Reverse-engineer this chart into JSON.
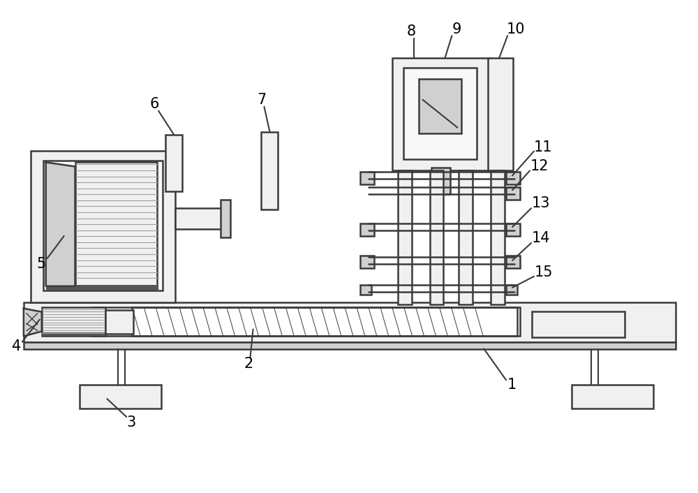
{
  "bg_color": "#ffffff",
  "line_color": "#3a3a3a",
  "label_color": "#000000",
  "figsize": [
    10.0,
    7.06
  ],
  "dpi": 100,
  "light_gray": "#f0f0f0",
  "mid_gray": "#d0d0d0",
  "dark_gray": "#555555",
  "stripe_gray": "#a0a0a0",
  "label_fontsize": 15
}
